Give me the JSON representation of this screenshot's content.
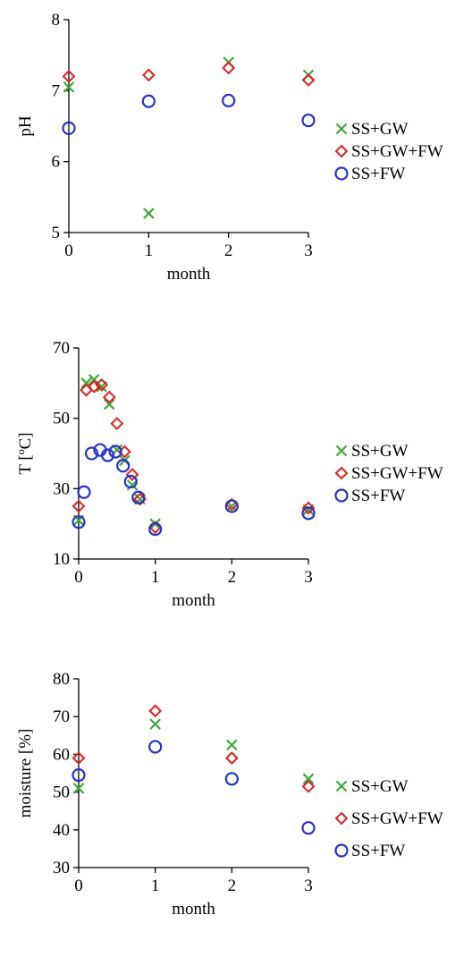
{
  "chart_data": [
    {
      "type": "scatter",
      "xlabel": "month",
      "ylabel": "pH",
      "xlim": [
        0,
        3
      ],
      "ylim": [
        5,
        8
      ],
      "xticks": [
        0,
        1,
        2,
        3
      ],
      "yticks": [
        5,
        6,
        7,
        8
      ],
      "grid": false,
      "legend_position": "right",
      "series": [
        {
          "name": "SS+GW",
          "marker": "x",
          "color": "#3aaa35",
          "x": [
            0,
            1,
            2,
            3
          ],
          "y": [
            7.05,
            5.27,
            7.4,
            7.22
          ]
        },
        {
          "name": "SS+GW+FW",
          "marker": "diamond",
          "color": "#e02020",
          "x": [
            0,
            1,
            2,
            3
          ],
          "y": [
            7.2,
            7.22,
            7.32,
            7.15
          ]
        },
        {
          "name": "SS+FW",
          "marker": "circle",
          "color": "#2233cc",
          "x": [
            0,
            1,
            2,
            3
          ],
          "y": [
            6.47,
            6.85,
            6.86,
            6.58
          ]
        }
      ]
    },
    {
      "type": "scatter",
      "xlabel": "month",
      "ylabel": "T [ºC]",
      "xlim": [
        0,
        3
      ],
      "ylim": [
        10,
        70
      ],
      "xticks": [
        0,
        1,
        2,
        3
      ],
      "yticks": [
        10,
        30,
        50,
        70
      ],
      "grid": false,
      "legend_position": "right",
      "series": [
        {
          "name": "SS+GW",
          "marker": "x",
          "color": "#3aaa35",
          "x": [
            0,
            0.1,
            0.2,
            0.3,
            0.4,
            0.5,
            0.6,
            0.7,
            0.8,
            1,
            2,
            3
          ],
          "y": [
            21,
            60,
            61,
            59,
            54,
            41,
            38,
            31,
            27,
            20,
            25,
            24
          ]
        },
        {
          "name": "SS+GW+FW",
          "marker": "diamond",
          "color": "#e02020",
          "x": [
            0,
            0.1,
            0.2,
            0.3,
            0.4,
            0.5,
            0.6,
            0.7,
            0.8,
            1,
            2,
            3
          ],
          "y": [
            25,
            58,
            59,
            59.5,
            56,
            48.5,
            40.5,
            34,
            27,
            19,
            25.5,
            24.5
          ]
        },
        {
          "name": "SS+FW",
          "marker": "circle",
          "color": "#2233cc",
          "x": [
            0,
            0.07,
            0.17,
            0.28,
            0.38,
            0.48,
            0.58,
            0.68,
            0.78,
            1,
            2,
            3
          ],
          "y": [
            20.5,
            29,
            40,
            41,
            39.5,
            40.5,
            36.5,
            32,
            27.5,
            18.5,
            25,
            23
          ]
        }
      ]
    },
    {
      "type": "scatter",
      "xlabel": "month",
      "ylabel": "moisture [%]",
      "xlim": [
        0,
        3
      ],
      "ylim": [
        30,
        80
      ],
      "xticks": [
        0,
        1,
        2,
        3
      ],
      "yticks": [
        30,
        40,
        50,
        60,
        70,
        80
      ],
      "grid": false,
      "legend_position": "right",
      "series": [
        {
          "name": "SS+GW",
          "marker": "x",
          "color": "#3aaa35",
          "x": [
            0,
            1,
            2,
            3
          ],
          "y": [
            51,
            68,
            62.5,
            53.5
          ]
        },
        {
          "name": "SS+GW+FW",
          "marker": "diamond",
          "color": "#e02020",
          "x": [
            0,
            1,
            2,
            3
          ],
          "y": [
            59,
            71.5,
            59,
            51.5
          ]
        },
        {
          "name": "SS+FW",
          "marker": "circle",
          "color": "#2233cc",
          "x": [
            0,
            1,
            2,
            3
          ],
          "y": [
            54.5,
            62,
            53.5,
            40.5
          ]
        }
      ]
    }
  ]
}
